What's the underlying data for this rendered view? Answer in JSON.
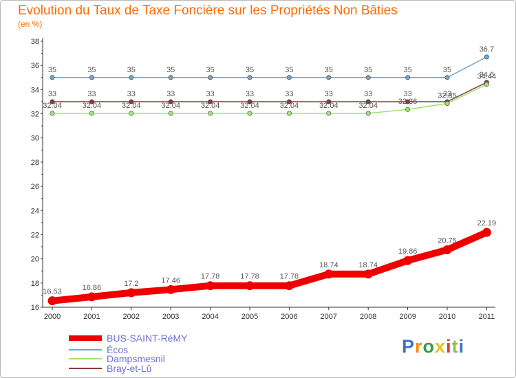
{
  "chart_data": {
    "type": "line",
    "title": "Evolution du Taux de Taxe Foncière sur les Propriétés Non Bâties",
    "ylabel": "(en %)",
    "xlabel": "",
    "x": [
      "2000",
      "2001",
      "2002",
      "2003",
      "2004",
      "2005",
      "2006",
      "2007",
      "2008",
      "2009",
      "2010",
      "2011"
    ],
    "ylim": [
      16,
      38
    ],
    "yticks": [
      "16",
      "18",
      "20",
      "22",
      "24",
      "26",
      "28",
      "30",
      "32",
      "34",
      "36",
      "38"
    ],
    "grid": false,
    "legend_position": "bottom-left",
    "series": [
      {
        "name": "BUS-SAINT-RéMY",
        "color": "#ee0000",
        "values": [
          16.53,
          16.86,
          17.2,
          17.46,
          17.78,
          17.78,
          17.78,
          18.74,
          18.74,
          19.86,
          20.75,
          22.19
        ],
        "labels": [
          "16.53",
          "16.86",
          "17.2",
          "17.46",
          "17.78",
          "17.78",
          "17.78",
          "18.74",
          "18.74",
          "19.86",
          "20.75",
          "22.19"
        ]
      },
      {
        "name": "Écos",
        "color": "#6aa7d8",
        "values": [
          35,
          35,
          35,
          35,
          35,
          35,
          35,
          35,
          35,
          35,
          35,
          36.7
        ],
        "labels": [
          "35",
          "35",
          "35",
          "35",
          "35",
          "35",
          "35",
          "35",
          "35",
          "35",
          "35",
          "36.7"
        ]
      },
      {
        "name": "Dampsmesnil",
        "color": "#9ee46e",
        "values": [
          32.04,
          32.04,
          32.04,
          32.04,
          32.04,
          32.04,
          32.04,
          32.04,
          32.04,
          32.36,
          32.85,
          34.44
        ],
        "labels": [
          "32.04",
          "32.04",
          "32.04",
          "32.04",
          "32.04",
          "32.04",
          "32.04",
          "32.04",
          "32.04",
          "32.36",
          "32.85",
          "34.44"
        ]
      },
      {
        "name": "Bray-et-Lû",
        "color": "#8a3a3a",
        "values": [
          33,
          33,
          33,
          33,
          33,
          33,
          33,
          33,
          33,
          33,
          33,
          34.6
        ],
        "labels": [
          "33",
          "33",
          "33",
          "33",
          "33",
          "33",
          "33",
          "33",
          "33",
          "33",
          "33",
          "34.6"
        ]
      }
    ]
  },
  "logo": {
    "text": "Proxiti"
  }
}
